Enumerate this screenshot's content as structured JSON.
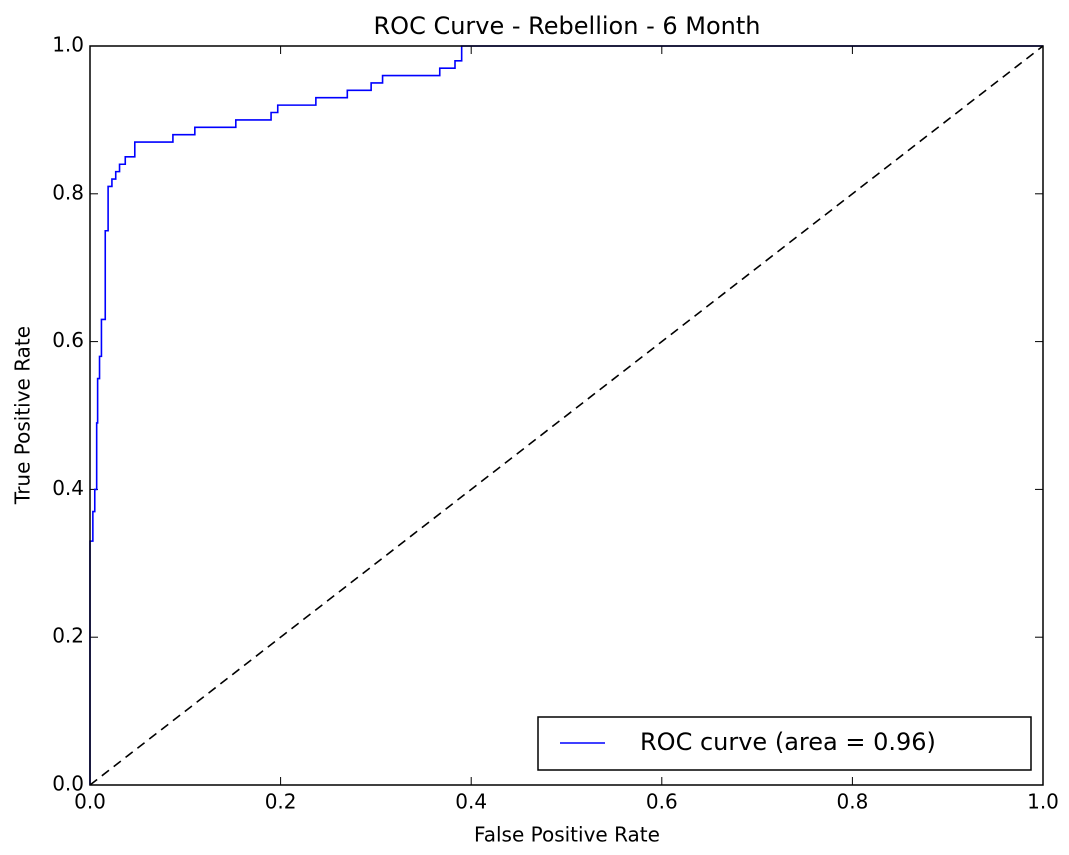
{
  "chart_data": {
    "type": "line",
    "title": "ROC Curve - Rebellion - 6 Month",
    "xlabel": "False Positive Rate",
    "ylabel": "True Positive Rate",
    "xlim": [
      0,
      1
    ],
    "ylim": [
      0,
      1
    ],
    "xticks": [
      {
        "value": 0,
        "label": "0.0"
      },
      0.2,
      0.4,
      0.6,
      0.8,
      {
        "value": 1,
        "label": "1.0"
      }
    ],
    "yticks": [
      {
        "value": 0,
        "label": "0.0"
      },
      0.2,
      0.4,
      0.6,
      0.8,
      {
        "value": 1,
        "label": "1.0"
      }
    ],
    "grid": false,
    "legend": "lower right",
    "series": [
      {
        "name": "ROC curve (area = 0.96)",
        "color": "#0000ff",
        "x": [
          0,
          0,
          0.003,
          0.003,
          0.005,
          0.005,
          0.007,
          0.007,
          0.008,
          0.008,
          0.01,
          0.01,
          0.012,
          0.012,
          0.016,
          0.016,
          0.019,
          0.019,
          0.023,
          0.023,
          0.027,
          0.027,
          0.031,
          0.031,
          0.037,
          0.037,
          0.047,
          0.047,
          0.087,
          0.087,
          0.11,
          0.11,
          0.153,
          0.153,
          0.19,
          0.19,
          0.197,
          0.197,
          0.237,
          0.237,
          0.27,
          0.27,
          0.295,
          0.295,
          0.307,
          0.307,
          0.367,
          0.367,
          0.383,
          0.383,
          0.39,
          0.39,
          1.0
        ],
        "values": [
          0,
          0.33,
          0.33,
          0.37,
          0.37,
          0.4,
          0.4,
          0.49,
          0.49,
          0.55,
          0.55,
          0.58,
          0.58,
          0.63,
          0.63,
          0.75,
          0.75,
          0.81,
          0.81,
          0.82,
          0.82,
          0.83,
          0.83,
          0.84,
          0.84,
          0.85,
          0.85,
          0.87,
          0.87,
          0.88,
          0.88,
          0.89,
          0.89,
          0.9,
          0.9,
          0.91,
          0.91,
          0.92,
          0.92,
          0.93,
          0.93,
          0.94,
          0.94,
          0.95,
          0.95,
          0.96,
          0.96,
          0.97,
          0.97,
          0.98,
          0.98,
          1.0,
          1.0
        ]
      },
      {
        "color": "#000000",
        "dash": true,
        "x": [
          0,
          1
        ],
        "values": [
          0,
          1
        ]
      }
    ]
  }
}
